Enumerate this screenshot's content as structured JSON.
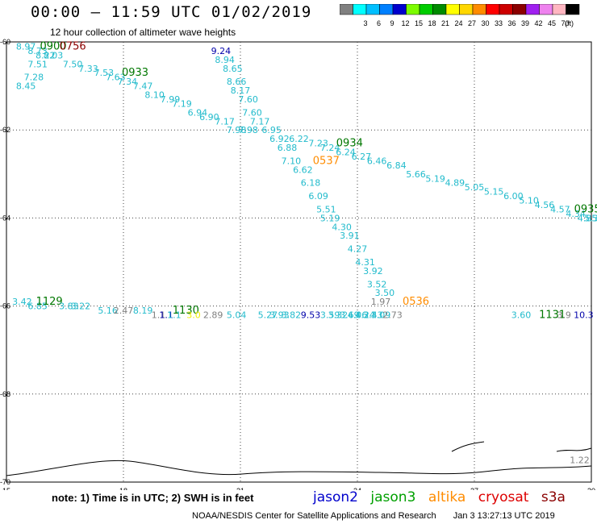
{
  "header": {
    "title": "00:00 – 11:59 UTC 01/02/2019",
    "subtitle": "12 hour collection of altimeter wave heights"
  },
  "colorbar": {
    "unit": "(ft)",
    "bins": [
      {
        "color": "#808080",
        "label": ""
      },
      {
        "color": "#00ffff",
        "label": "3"
      },
      {
        "color": "#00bfff",
        "label": "6"
      },
      {
        "color": "#0080ff",
        "label": "9"
      },
      {
        "color": "#0000cd",
        "label": "12"
      },
      {
        "color": "#7cfc00",
        "label": "15"
      },
      {
        "color": "#00cd00",
        "label": "18"
      },
      {
        "color": "#008b00",
        "label": "21"
      },
      {
        "color": "#ffff00",
        "label": "24"
      },
      {
        "color": "#ffd700",
        "label": "27"
      },
      {
        "color": "#ff8c00",
        "label": "30"
      },
      {
        "color": "#ff0000",
        "label": "33"
      },
      {
        "color": "#cd0000",
        "label": "36"
      },
      {
        "color": "#8b0000",
        "label": "39"
      },
      {
        "color": "#a020f0",
        "label": "42"
      },
      {
        "color": "#ee82ee",
        "label": "45"
      },
      {
        "color": "#ffb6c1",
        "label": "70"
      },
      {
        "color": "#000000",
        "label": ""
      }
    ]
  },
  "chart_data": {
    "type": "scatter",
    "title": "00:00 – 11:59 UTC 01/02/2019",
    "xlim": [
      15,
      30
    ],
    "ylim": [
      -70,
      -60
    ],
    "x_ticks": [
      "15",
      "18",
      "21",
      "24",
      "27",
      "30"
    ],
    "y_ticks": [
      "-60",
      "-62",
      "-64",
      "-66",
      "-68",
      "-70"
    ],
    "grid": true,
    "labels": [
      {
        "x": 15.5,
        "y": -60.1,
        "text": "8.97",
        "color": "#22bbcc",
        "size": 11
      },
      {
        "x": 15.8,
        "y": -60.2,
        "text": "8.73",
        "color": "#22bbcc",
        "size": 11
      },
      {
        "x": 16.0,
        "y": -60.3,
        "text": "8.22",
        "color": "#22bbcc",
        "size": 11
      },
      {
        "x": 16.2,
        "y": -60.3,
        "text": "8.03",
        "color": "#22bbcc",
        "size": 11
      },
      {
        "x": 15.8,
        "y": -60.5,
        "text": "7.51",
        "color": "#22bbcc",
        "size": 11
      },
      {
        "x": 15.7,
        "y": -60.8,
        "text": "7.28",
        "color": "#22bbcc",
        "size": 11
      },
      {
        "x": 15.5,
        "y": -61.0,
        "text": "8.45",
        "color": "#22bbcc",
        "size": 11
      },
      {
        "x": 16.2,
        "y": -60.1,
        "text": "0900",
        "color": "#007700",
        "size": 13
      },
      {
        "x": 16.7,
        "y": -60.1,
        "text": "0756",
        "color": "#8b0000",
        "size": 13
      },
      {
        "x": 16.7,
        "y": -60.5,
        "text": "7.50",
        "color": "#22bbcc",
        "size": 11
      },
      {
        "x": 17.1,
        "y": -60.6,
        "text": "7.33",
        "color": "#22bbcc",
        "size": 11
      },
      {
        "x": 17.5,
        "y": -60.7,
        "text": "7.53",
        "color": "#22bbcc",
        "size": 11
      },
      {
        "x": 17.8,
        "y": -60.8,
        "text": "7.63",
        "color": "#22bbcc",
        "size": 11
      },
      {
        "x": 18.3,
        "y": -60.7,
        "text": "0933",
        "color": "#007700",
        "size": 13
      },
      {
        "x": 18.1,
        "y": -60.9,
        "text": "7.34",
        "color": "#22bbcc",
        "size": 11
      },
      {
        "x": 18.5,
        "y": -61.0,
        "text": "7.47",
        "color": "#22bbcc",
        "size": 11
      },
      {
        "x": 18.8,
        "y": -61.2,
        "text": "8.10",
        "color": "#22bbcc",
        "size": 11
      },
      {
        "x": 19.2,
        "y": -61.3,
        "text": "7.99",
        "color": "#22bbcc",
        "size": 11
      },
      {
        "x": 19.5,
        "y": -61.4,
        "text": "7.19",
        "color": "#22bbcc",
        "size": 11
      },
      {
        "x": 19.9,
        "y": -61.6,
        "text": "6.94",
        "color": "#22bbcc",
        "size": 11
      },
      {
        "x": 20.2,
        "y": -61.7,
        "text": "6.90",
        "color": "#22bbcc",
        "size": 11
      },
      {
        "x": 20.6,
        "y": -61.8,
        "text": "7.17",
        "color": "#22bbcc",
        "size": 11
      },
      {
        "x": 20.9,
        "y": -62.0,
        "text": "7.98",
        "color": "#22bbcc",
        "size": 11
      },
      {
        "x": 20.5,
        "y": -60.2,
        "text": "9.24",
        "color": "#0000aa",
        "size": 11
      },
      {
        "x": 20.6,
        "y": -60.4,
        "text": "8.94",
        "color": "#22bbcc",
        "size": 11
      },
      {
        "x": 20.8,
        "y": -60.6,
        "text": "8.65",
        "color": "#22bbcc",
        "size": 11
      },
      {
        "x": 20.9,
        "y": -60.9,
        "text": "8.66",
        "color": "#22bbcc",
        "size": 11
      },
      {
        "x": 21.0,
        "y": -61.1,
        "text": "8.17",
        "color": "#22bbcc",
        "size": 11
      },
      {
        "x": 21.2,
        "y": -61.3,
        "text": "7.60",
        "color": "#22bbcc",
        "size": 11
      },
      {
        "x": 21.3,
        "y": -61.6,
        "text": "7.60",
        "color": "#22bbcc",
        "size": 11
      },
      {
        "x": 21.5,
        "y": -61.8,
        "text": "7.17",
        "color": "#22bbcc",
        "size": 11
      },
      {
        "x": 21.2,
        "y": -62.0,
        "text": "7.98",
        "color": "#22bbcc",
        "size": 11
      },
      {
        "x": 21.8,
        "y": -62.0,
        "text": "6.95",
        "color": "#22bbcc",
        "size": 11
      },
      {
        "x": 22.0,
        "y": -62.2,
        "text": "6.92",
        "color": "#22bbcc",
        "size": 11
      },
      {
        "x": 22.5,
        "y": -62.2,
        "text": "6.22",
        "color": "#22bbcc",
        "size": 11
      },
      {
        "x": 23.0,
        "y": -62.3,
        "text": "7.23",
        "color": "#22bbcc",
        "size": 11
      },
      {
        "x": 23.3,
        "y": -62.4,
        "text": "7.24",
        "color": "#22bbcc",
        "size": 11
      },
      {
        "x": 23.8,
        "y": -62.3,
        "text": "0934",
        "color": "#007700",
        "size": 13
      },
      {
        "x": 23.7,
        "y": -62.5,
        "text": "6.24",
        "color": "#22bbcc",
        "size": 11
      },
      {
        "x": 24.1,
        "y": -62.6,
        "text": "6.27",
        "color": "#22bbcc",
        "size": 11
      },
      {
        "x": 24.5,
        "y": -62.7,
        "text": "6.46",
        "color": "#22bbcc",
        "size": 11
      },
      {
        "x": 25.0,
        "y": -62.8,
        "text": "6.84",
        "color": "#22bbcc",
        "size": 11
      },
      {
        "x": 25.5,
        "y": -63.0,
        "text": "5.66",
        "color": "#22bbcc",
        "size": 11
      },
      {
        "x": 26.0,
        "y": -63.1,
        "text": "5.19",
        "color": "#22bbcc",
        "size": 11
      },
      {
        "x": 26.5,
        "y": -63.2,
        "text": "4.89",
        "color": "#22bbcc",
        "size": 11
      },
      {
        "x": 27.0,
        "y": -63.3,
        "text": "5.05",
        "color": "#22bbcc",
        "size": 11
      },
      {
        "x": 27.5,
        "y": -63.4,
        "text": "5.15",
        "color": "#22bbcc",
        "size": 11
      },
      {
        "x": 28.0,
        "y": -63.5,
        "text": "6.00",
        "color": "#22bbcc",
        "size": 11
      },
      {
        "x": 28.4,
        "y": -63.6,
        "text": "5.10",
        "color": "#22bbcc",
        "size": 11
      },
      {
        "x": 28.8,
        "y": -63.7,
        "text": "4.56",
        "color": "#22bbcc",
        "size": 11
      },
      {
        "x": 29.2,
        "y": -63.8,
        "text": "4.57",
        "color": "#22bbcc",
        "size": 11
      },
      {
        "x": 29.6,
        "y": -63.9,
        "text": "4.34",
        "color": "#22bbcc",
        "size": 11
      },
      {
        "x": 29.9,
        "y": -63.8,
        "text": "0935",
        "color": "#007700",
        "size": 13
      },
      {
        "x": 29.9,
        "y": -64.0,
        "text": "4.85",
        "color": "#22bbcc",
        "size": 11
      },
      {
        "x": 30.0,
        "y": -64.0,
        "text": "5.3",
        "color": "#22bbcc",
        "size": 11
      },
      {
        "x": 22.2,
        "y": -62.4,
        "text": "6.88",
        "color": "#22bbcc",
        "size": 11
      },
      {
        "x": 22.3,
        "y": -62.7,
        "text": "7.10",
        "color": "#22bbcc",
        "size": 11
      },
      {
        "x": 23.2,
        "y": -62.7,
        "text": "0537",
        "color": "#ff8c00",
        "size": 13
      },
      {
        "x": 22.6,
        "y": -62.9,
        "text": "6.62",
        "color": "#22bbcc",
        "size": 11
      },
      {
        "x": 22.8,
        "y": -63.2,
        "text": "6.18",
        "color": "#22bbcc",
        "size": 11
      },
      {
        "x": 23.0,
        "y": -63.5,
        "text": "6.09",
        "color": "#22bbcc",
        "size": 11
      },
      {
        "x": 23.2,
        "y": -63.8,
        "text": "5.51",
        "color": "#22bbcc",
        "size": 11
      },
      {
        "x": 23.3,
        "y": -64.0,
        "text": "5.19",
        "color": "#22bbcc",
        "size": 11
      },
      {
        "x": 23.6,
        "y": -64.2,
        "text": "4.30",
        "color": "#22bbcc",
        "size": 11
      },
      {
        "x": 23.8,
        "y": -64.4,
        "text": "3.91",
        "color": "#22bbcc",
        "size": 11
      },
      {
        "x": 24.0,
        "y": -64.7,
        "text": "4.27",
        "color": "#22bbcc",
        "size": 11
      },
      {
        "x": 24.2,
        "y": -65.0,
        "text": "4.31",
        "color": "#22bbcc",
        "size": 11
      },
      {
        "x": 24.4,
        "y": -65.2,
        "text": "3.92",
        "color": "#22bbcc",
        "size": 11
      },
      {
        "x": 24.5,
        "y": -65.5,
        "text": "3.52",
        "color": "#22bbcc",
        "size": 11
      },
      {
        "x": 24.7,
        "y": -65.7,
        "text": "3.50",
        "color": "#22bbcc",
        "size": 11
      },
      {
        "x": 24.6,
        "y": -65.9,
        "text": "1.97",
        "color": "#808080",
        "size": 11
      },
      {
        "x": 25.5,
        "y": -65.9,
        "text": "0536",
        "color": "#ff8c00",
        "size": 13
      },
      {
        "x": 15.4,
        "y": -65.9,
        "text": "3.42",
        "color": "#22bbcc",
        "size": 11
      },
      {
        "x": 15.8,
        "y": -66.0,
        "text": "6.85",
        "color": "#22bbcc",
        "size": 11
      },
      {
        "x": 16.1,
        "y": -65.9,
        "text": "1129",
        "color": "#007700",
        "size": 13
      },
      {
        "x": 16.6,
        "y": -66.0,
        "text": "3.83",
        "color": "#22bbcc",
        "size": 11
      },
      {
        "x": 16.9,
        "y": -66.0,
        "text": "3.22",
        "color": "#22bbcc",
        "size": 11
      },
      {
        "x": 17.6,
        "y": -66.1,
        "text": "5.16",
        "color": "#22bbcc",
        "size": 11
      },
      {
        "x": 18.0,
        "y": -66.1,
        "text": "2.47",
        "color": "#808080",
        "size": 11
      },
      {
        "x": 18.5,
        "y": -66.1,
        "text": "8.19",
        "color": "#22bbcc",
        "size": 11
      },
      {
        "x": 18.9,
        "y": -66.2,
        "text": "1.1",
        "color": "#808080",
        "size": 11
      },
      {
        "x": 19.1,
        "y": -66.2,
        "text": "1.1",
        "color": "#0000aa",
        "size": 11
      },
      {
        "x": 19.3,
        "y": -66.2,
        "text": "1.1",
        "color": "#22bbcc",
        "size": 11
      },
      {
        "x": 19.6,
        "y": -66.1,
        "text": "1130",
        "color": "#007700",
        "size": 13
      },
      {
        "x": 19.8,
        "y": -66.2,
        "text": "3.0",
        "color": "#eeee00",
        "size": 11
      },
      {
        "x": 20.3,
        "y": -66.2,
        "text": "2.89",
        "color": "#808080",
        "size": 11
      },
      {
        "x": 20.9,
        "y": -66.2,
        "text": "5.04",
        "color": "#22bbcc",
        "size": 11
      },
      {
        "x": 21.7,
        "y": -66.2,
        "text": "5.27",
        "color": "#22bbcc",
        "size": 11
      },
      {
        "x": 22.0,
        "y": -66.2,
        "text": "3.93",
        "color": "#22bbcc",
        "size": 11
      },
      {
        "x": 22.3,
        "y": -66.2,
        "text": "3.82",
        "color": "#22bbcc",
        "size": 11
      },
      {
        "x": 22.8,
        "y": -66.2,
        "text": "9.53",
        "color": "#0000aa",
        "size": 11
      },
      {
        "x": 23.3,
        "y": -66.2,
        "text": "3.59",
        "color": "#22bbcc",
        "size": 11
      },
      {
        "x": 23.5,
        "y": -66.2,
        "text": "3.32",
        "color": "#22bbcc",
        "size": 11
      },
      {
        "x": 23.8,
        "y": -66.2,
        "text": "3.69",
        "color": "#22bbcc",
        "size": 11
      },
      {
        "x": 24.0,
        "y": -66.2,
        "text": "4.06",
        "color": "#22bbcc",
        "size": 11
      },
      {
        "x": 24.2,
        "y": -66.2,
        "text": "4.24",
        "color": "#22bbcc",
        "size": 11
      },
      {
        "x": 24.4,
        "y": -66.2,
        "text": "3.43",
        "color": "#22bbcc",
        "size": 11
      },
      {
        "x": 24.6,
        "y": -66.2,
        "text": "3.09",
        "color": "#22bbcc",
        "size": 11
      },
      {
        "x": 24.9,
        "y": -66.2,
        "text": "2.73",
        "color": "#808080",
        "size": 11
      },
      {
        "x": 28.2,
        "y": -66.2,
        "text": "3.60",
        "color": "#22bbcc",
        "size": 11
      },
      {
        "x": 29.0,
        "y": -66.2,
        "text": "1131",
        "color": "#007700",
        "size": 13
      },
      {
        "x": 29.3,
        "y": -66.2,
        "text": "3.9",
        "color": "#808080",
        "size": 11
      },
      {
        "x": 29.8,
        "y": -66.2,
        "text": "10.3",
        "color": "#0000aa",
        "size": 11
      },
      {
        "x": 29.7,
        "y": -69.5,
        "text": "1.22",
        "color": "#808080",
        "size": 11
      }
    ]
  },
  "note": {
    "text": "note:  1) Time is in UTC;  2) SWH is in feet"
  },
  "satellites": [
    {
      "name": "jason2",
      "color": "#0000cc"
    },
    {
      "name": "jason3",
      "color": "#00a000"
    },
    {
      "name": "altika",
      "color": "#ff8c00"
    },
    {
      "name": "cryosat",
      "color": "#dd0000"
    },
    {
      "name": "s3a",
      "color": "#8b0000"
    }
  ],
  "footer": {
    "agency": "NOAA/NESDIS Center for Satellite Applications and Research",
    "timestamp": "Jan  3 13:27:13 UTC 2019"
  }
}
